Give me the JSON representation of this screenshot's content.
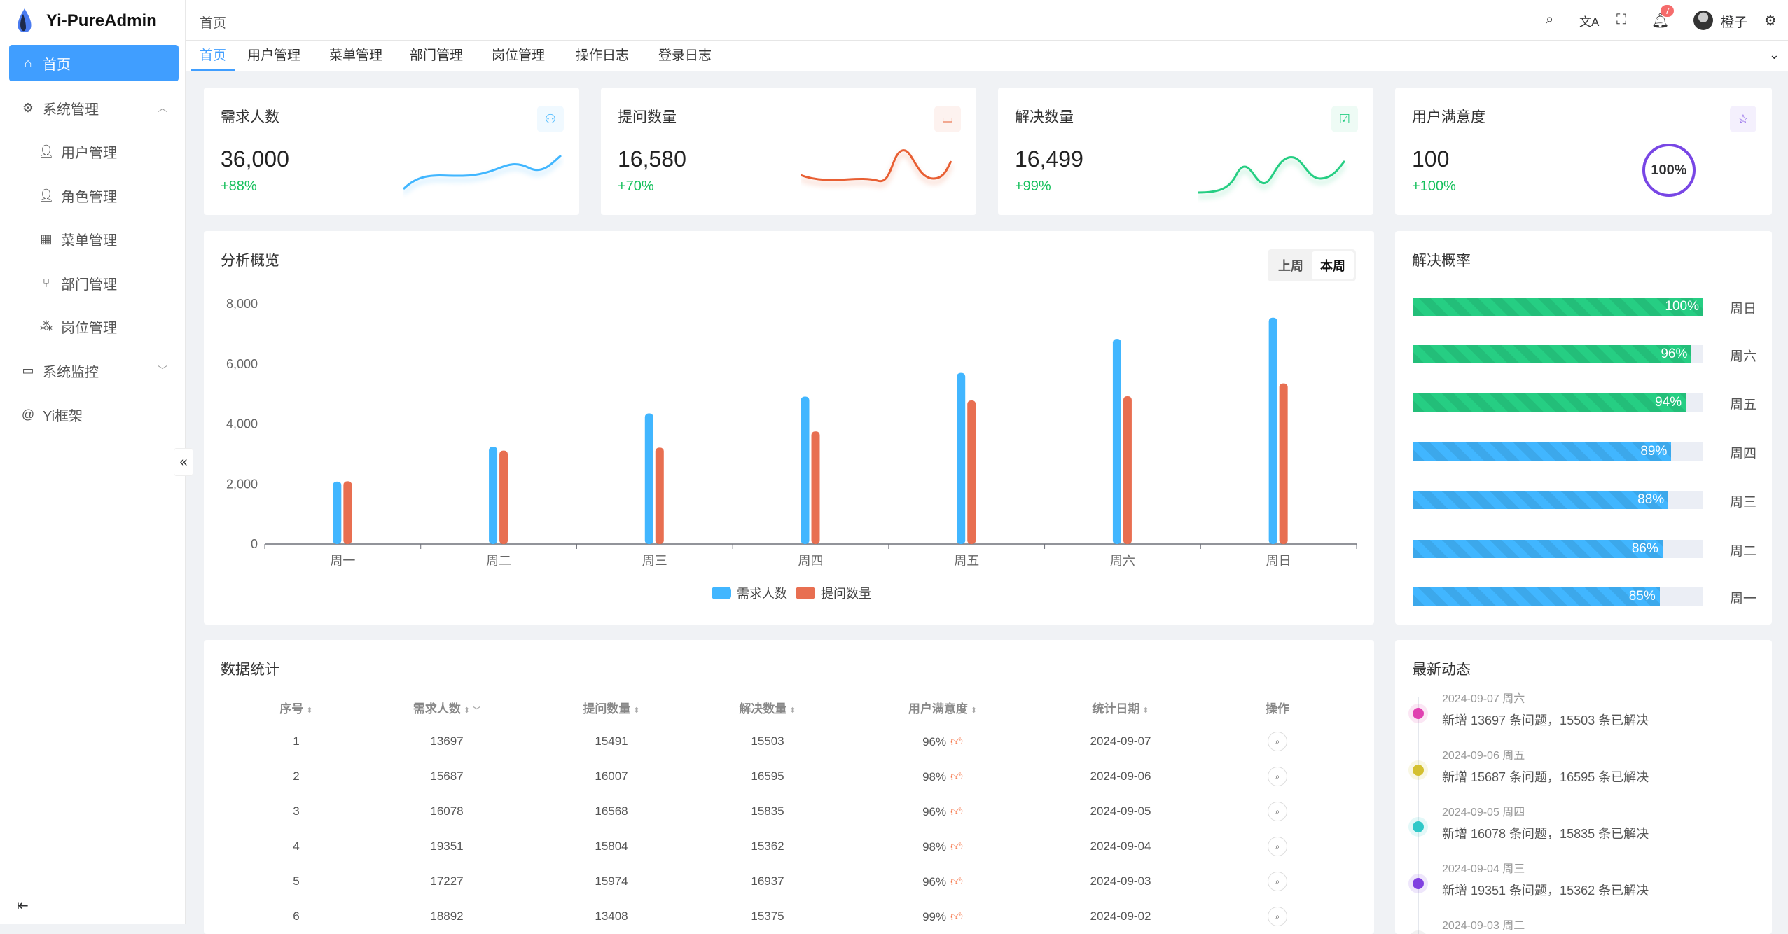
{
  "app": {
    "title": "Yi-PureAdmin"
  },
  "sidebar": {
    "items": [
      {
        "label": "首页",
        "icon": "home-icon",
        "active": true
      },
      {
        "label": "系统管理",
        "icon": "gear-icon",
        "expanded": true
      },
      {
        "label": "用户管理",
        "icon": "user-icon",
        "sub": true
      },
      {
        "label": "角色管理",
        "icon": "user-filled-icon",
        "sub": true
      },
      {
        "label": "菜单管理",
        "icon": "grid-icon",
        "sub": true
      },
      {
        "label": "部门管理",
        "icon": "branch-icon",
        "sub": true
      },
      {
        "label": "岗位管理",
        "icon": "network-icon",
        "sub": true
      },
      {
        "label": "系统监控",
        "icon": "monitor-icon"
      },
      {
        "label": "Yi框架",
        "icon": "at-icon"
      }
    ],
    "collapse_glyph": "«",
    "footer_glyph": "⇤"
  },
  "header": {
    "breadcrumb": "首页",
    "notification_count": "7",
    "user_name": "橙子"
  },
  "tabs": [
    "首页",
    "用户管理",
    "菜单管理",
    "部门管理",
    "岗位管理",
    "操作日志",
    "登录日志"
  ],
  "stats": [
    {
      "title": "需求人数",
      "value": "36,000",
      "percent": "+88%",
      "color": "#41b6ff",
      "icon": "users-icon"
    },
    {
      "title": "提问数量",
      "value": "16,580",
      "percent": "+70%",
      "color": "#e85f33",
      "icon": "chat-icon"
    },
    {
      "title": "解决数量",
      "value": "16,499",
      "percent": "+99%",
      "color": "#26ce83",
      "icon": "check-chat-icon"
    },
    {
      "title": "用户满意度",
      "value": "100",
      "percent": "+100%",
      "color": "#7846e5",
      "icon": "star-icon",
      "ring_label": "100%"
    }
  ],
  "overview": {
    "title": "分析概览",
    "toggle": [
      "上周",
      "本周"
    ],
    "selected": "本周"
  },
  "chart_data": {
    "type": "bar",
    "categories": [
      "周一",
      "周二",
      "周三",
      "周四",
      "周五",
      "周六",
      "周日"
    ],
    "series": [
      {
        "name": "需求人数",
        "color": "#41b6ff",
        "values": [
          2080,
          3240,
          4350,
          4910,
          5700,
          6830,
          7540
        ]
      },
      {
        "name": "提问数量",
        "color": "#e86f51",
        "values": [
          2090,
          3110,
          3210,
          3750,
          4780,
          4920,
          5350
        ]
      }
    ],
    "ylim": [
      0,
      8000
    ],
    "yticks": [
      "0",
      "2,000",
      "4,000",
      "6,000",
      "8,000"
    ],
    "legend": "bottom",
    "grid": false
  },
  "rate": {
    "title": "解决概率",
    "items": [
      {
        "day": "周日",
        "value": 100,
        "label": "100%",
        "color": "#26ce83"
      },
      {
        "day": "周六",
        "value": 96,
        "label": "96%",
        "color": "#26ce83"
      },
      {
        "day": "周五",
        "value": 94,
        "label": "94%",
        "color": "#26ce83"
      },
      {
        "day": "周四",
        "value": 89,
        "label": "89%",
        "color": "#41b6ff"
      },
      {
        "day": "周三",
        "value": 88,
        "label": "88%",
        "color": "#41b6ff"
      },
      {
        "day": "周二",
        "value": 86,
        "label": "86%",
        "color": "#41b6ff"
      },
      {
        "day": "周一",
        "value": 85,
        "label": "85%",
        "color": "#41b6ff"
      }
    ]
  },
  "table": {
    "title": "数据统计",
    "columns": [
      "序号",
      "需求人数",
      "提问数量",
      "解决数量",
      "用户满意度",
      "统计日期",
      "操作"
    ],
    "rows": [
      [
        "1",
        "13697",
        "15491",
        "15503",
        "96%",
        "2024-09-07"
      ],
      [
        "2",
        "15687",
        "16007",
        "16595",
        "98%",
        "2024-09-06"
      ],
      [
        "3",
        "16078",
        "16568",
        "15835",
        "96%",
        "2024-09-05"
      ],
      [
        "4",
        "19351",
        "15804",
        "15362",
        "98%",
        "2024-09-04"
      ],
      [
        "5",
        "17227",
        "15974",
        "16937",
        "96%",
        "2024-09-03"
      ],
      [
        "6",
        "18892",
        "13408",
        "15375",
        "99%",
        "2024-09-02"
      ]
    ]
  },
  "activity": {
    "title": "最新动态",
    "items": [
      {
        "date": "2024-09-07 周六",
        "text": "新增 13697 条问题，15503 条已解决",
        "color": "#e040b0"
      },
      {
        "date": "2024-09-06 周五",
        "text": "新增 15687 条问题，16595 条已解决",
        "color": "#d4c030"
      },
      {
        "date": "2024-09-05 周四",
        "text": "新增 16078 条问题，15835 条已解决",
        "color": "#30c8c8"
      },
      {
        "date": "2024-09-04 周三",
        "text": "新增 19351 条问题，15362 条已解决",
        "color": "#8040e0"
      },
      {
        "date": "2024-09-03 周二",
        "text": "",
        "color": "#999999"
      }
    ]
  }
}
